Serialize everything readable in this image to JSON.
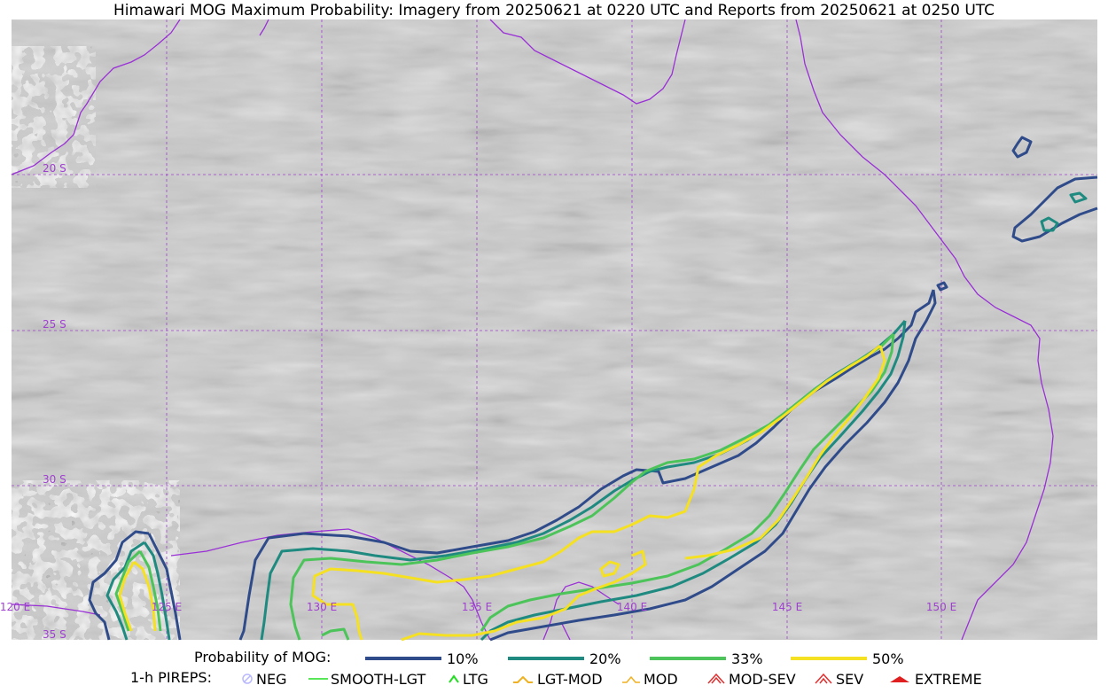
{
  "title": "Himawari MOG Maximum Probability: Imagery from 20250621 at 0220 UTC and Reports from 20250621 at 0250 UTC",
  "map": {
    "lat_labels": [
      "20 S",
      "25 S",
      "30 S",
      "35 S"
    ],
    "lon_labels": [
      "120 E",
      "125 E",
      "130 E",
      "135 E",
      "140 E",
      "145 E",
      "150 E"
    ],
    "colors": {
      "background": "#c9c9c9",
      "grid": "#a040d0",
      "coast": "#9a30d6",
      "p10": "#2f4b8a",
      "p20": "#1f8a80",
      "p33": "#4cc45a",
      "p50": "#f5e021"
    }
  },
  "legend": {
    "probability": {
      "label": "Probability of MOG:",
      "items": [
        {
          "label": "10%",
          "color": "#2f4b8a"
        },
        {
          "label": "20%",
          "color": "#1f8a80"
        },
        {
          "label": "33%",
          "color": "#4cc45a"
        },
        {
          "label": "50%",
          "color": "#f5e021"
        }
      ]
    },
    "pireps": {
      "label": "1-h PIREPS:",
      "items": [
        {
          "label": "NEG",
          "color": "#b8b8ff",
          "icon": "neg-circle-icon"
        },
        {
          "label": "SMOOTH-LGT",
          "color": "#22dd22",
          "icon": "line-icon"
        },
        {
          "label": "LTG",
          "color": "#22dd22",
          "icon": "caret-icon"
        },
        {
          "label": "LGT-MOD",
          "color": "#f0b020",
          "icon": "double-caret-icon"
        },
        {
          "label": "MOD",
          "color": "#f0b020",
          "icon": "caret-wide-icon"
        },
        {
          "label": "MOD-SEV",
          "color": "#e03030",
          "icon": "caret-stack-icon"
        },
        {
          "label": "SEV",
          "color": "#e03030",
          "icon": "double-caret-red-icon"
        },
        {
          "label": "EXTREME",
          "color": "#e02020",
          "icon": "filled-caret-icon"
        }
      ]
    }
  }
}
